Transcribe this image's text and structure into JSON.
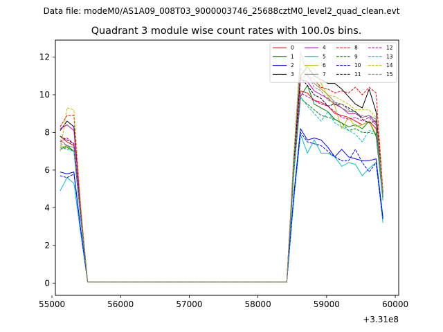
{
  "figure": {
    "suptitle": "Data file: modeM0/AS1A09_008T03_9000003746_25688cztM0_level2_quad_clean.evt",
    "title": "Quadrant 3 module wise count rates with 100.0s bins.",
    "offset_text": "+3.31e8"
  },
  "chart_data": {
    "type": "line",
    "title": "Quadrant 3 module wise count rates with 100.0s bins.",
    "xlabel": "",
    "ylabel": "",
    "x_offset": 331000000,
    "xlim": [
      55050,
      60050
    ],
    "ylim": [
      -0.65,
      12.9
    ],
    "x_ticks": [
      55000,
      56000,
      57000,
      58000,
      59000,
      60000
    ],
    "x_tick_labels": [
      "55000",
      "56000",
      "57000",
      "58000",
      "59000",
      "60000"
    ],
    "y_ticks": [
      0,
      2,
      4,
      6,
      8,
      10,
      12
    ],
    "y_tick_labels": [
      "0",
      "2",
      "4",
      "6",
      "8",
      "10",
      "12"
    ],
    "grid": false,
    "legend_position": "top-right",
    "legend_columns": 4,
    "x": [
      55120,
      55220,
      55320,
      55420,
      55520,
      58420,
      58520,
      58620,
      58720,
      58820,
      58920,
      59020,
      59120,
      59220,
      59320,
      59420,
      59520,
      59620,
      59720,
      59820
    ],
    "series": [
      {
        "name": "0",
        "color": "#ff0000",
        "dash": "solid",
        "values": [
          7.8,
          7.5,
          7.3,
          3.5,
          0.05,
          0.05,
          6.0,
          10.2,
          10.1,
          9.7,
          9.6,
          9.4,
          9.0,
          8.9,
          8.8,
          8.6,
          8.4,
          8.6,
          8.2,
          4.8
        ]
      },
      {
        "name": "1",
        "color": "#008000",
        "dash": "solid",
        "values": [
          7.1,
          7.3,
          7.0,
          3.4,
          0.05,
          0.05,
          5.8,
          9.9,
          10.5,
          9.5,
          9.3,
          9.1,
          8.7,
          8.5,
          8.3,
          8.4,
          8.2,
          8.6,
          7.8,
          4.5
        ]
      },
      {
        "name": "2",
        "color": "#0000ff",
        "dash": "solid",
        "values": [
          5.9,
          5.8,
          5.9,
          2.8,
          0.05,
          0.05,
          4.6,
          8.2,
          7.6,
          7.7,
          7.6,
          7.2,
          6.7,
          7.1,
          6.7,
          6.6,
          6.5,
          6.5,
          6.6,
          3.5
        ]
      },
      {
        "name": "3",
        "color": "#000000",
        "dash": "solid",
        "values": [
          8.1,
          8.6,
          8.3,
          3.9,
          0.05,
          0.05,
          6.5,
          11.0,
          11.5,
          11.0,
          10.8,
          10.6,
          10.6,
          10.3,
          9.9,
          9.5,
          9.3,
          10.3,
          9.1,
          4.9
        ]
      },
      {
        "name": "4",
        "color": "#bf00bf",
        "dash": "solid",
        "values": [
          8.2,
          8.4,
          8.1,
          3.8,
          0.05,
          0.05,
          6.4,
          10.8,
          10.7,
          10.2,
          10.0,
          9.8,
          9.5,
          9.3,
          9.0,
          9.0,
          8.8,
          8.9,
          8.5,
          4.8
        ]
      },
      {
        "name": "5",
        "color": "#00bfbf",
        "dash": "solid",
        "values": [
          4.9,
          5.6,
          5.3,
          2.6,
          0.05,
          0.05,
          4.3,
          7.9,
          6.9,
          7.6,
          6.9,
          6.9,
          6.7,
          6.2,
          6.4,
          6.3,
          5.7,
          6.1,
          6.4,
          3.2
        ]
      },
      {
        "name": "6",
        "color": "#bfbf00",
        "dash": "solid",
        "values": [
          7.3,
          7.2,
          7.0,
          3.4,
          0.05,
          0.05,
          6.0,
          11.9,
          11.4,
          11.4,
          10.6,
          9.9,
          9.4,
          8.2,
          8.8,
          8.3,
          8.4,
          8.6,
          7.9,
          4.6
        ]
      },
      {
        "name": "7",
        "color": "#808080",
        "dash": "solid",
        "values": [
          7.6,
          7.3,
          7.2,
          3.5,
          0.05,
          0.05,
          6.2,
          11.4,
          11.0,
          10.6,
          10.3,
          10.0,
          9.6,
          9.3,
          9.1,
          9.1,
          8.8,
          8.9,
          8.7,
          4.8
        ]
      },
      {
        "name": "8",
        "color": "#ff0000",
        "dash": "dashed",
        "values": [
          8.3,
          8.9,
          8.9,
          4.0,
          0.05,
          0.05,
          6.6,
          10.9,
          11.0,
          10.8,
          10.4,
          10.3,
          10.1,
          10.2,
          10.1,
          10.4,
          10.0,
          10.4,
          10.1,
          4.9
        ]
      },
      {
        "name": "9",
        "color": "#008000",
        "dash": "dashed",
        "values": [
          7.1,
          7.2,
          7.0,
          3.4,
          0.05,
          0.05,
          5.7,
          9.8,
          9.5,
          9.2,
          8.9,
          8.8,
          8.7,
          8.5,
          8.1,
          8.2,
          8.0,
          8.0,
          7.9,
          4.4
        ]
      },
      {
        "name": "10",
        "color": "#0000ff",
        "dash": "dashed",
        "values": [
          5.7,
          5.6,
          5.8,
          2.8,
          0.05,
          0.05,
          4.5,
          8.0,
          7.5,
          7.4,
          7.3,
          7.0,
          6.7,
          6.5,
          6.5,
          7.1,
          6.4,
          5.9,
          6.4,
          3.4
        ]
      },
      {
        "name": "11",
        "color": "#000000",
        "dash": "dashed",
        "values": [
          7.8,
          7.6,
          7.4,
          3.6,
          0.05,
          0.05,
          6.3,
          10.9,
          10.5,
          10.0,
          9.8,
          9.4,
          9.5,
          9.5,
          9.3,
          9.1,
          8.7,
          8.5,
          8.6,
          4.7
        ]
      },
      {
        "name": "12",
        "color": "#bf00bf",
        "dash": "dashed",
        "values": [
          7.5,
          7.7,
          7.4,
          3.6,
          0.05,
          0.05,
          6.1,
          10.1,
          9.9,
          9.7,
          9.5,
          9.4,
          9.1,
          8.8,
          8.7,
          8.8,
          8.6,
          8.8,
          8.4,
          4.6
        ]
      },
      {
        "name": "13",
        "color": "#00bfbf",
        "dash": "dashed",
        "values": [
          7.2,
          7.1,
          7.0,
          3.4,
          0.05,
          0.05,
          5.9,
          9.9,
          9.4,
          9.0,
          8.6,
          9.1,
          8.5,
          8.3,
          8.1,
          7.9,
          7.5,
          8.1,
          8.0,
          4.4
        ]
      },
      {
        "name": "14",
        "color": "#bfbf00",
        "dash": "dashed",
        "values": [
          7.0,
          9.3,
          9.2,
          4.1,
          0.05,
          0.05,
          6.8,
          12.2,
          11.5,
          10.8,
          10.3,
          10.0,
          9.9,
          9.7,
          9.5,
          9.2,
          9.2,
          9.2,
          8.8,
          4.9
        ]
      },
      {
        "name": "15",
        "color": "#808080",
        "dash": "dashed",
        "values": [
          7.4,
          7.3,
          7.2,
          3.5,
          0.05,
          0.05,
          6.3,
          12.3,
          11.1,
          10.4,
          10.2,
          9.7,
          9.6,
          9.5,
          9.2,
          9.0,
          8.9,
          8.8,
          8.6,
          4.7
        ]
      }
    ]
  }
}
